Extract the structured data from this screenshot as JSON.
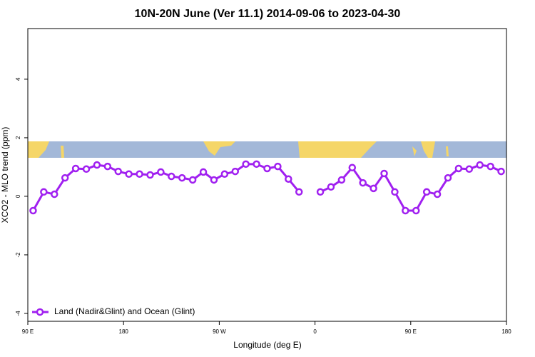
{
  "chart_data": {
    "type": "line",
    "title": "10N-20N June (Ver 11.1)   2014-09-06 to 2023-04-30",
    "x_label": "Longitude (deg E)",
    "y_label": "XCO2 - MLO trend (ppm)",
    "x": [
      95,
      105,
      115,
      125,
      135,
      145,
      155,
      165,
      175,
      185,
      195,
      205,
      215,
      225,
      235,
      245,
      255,
      265,
      275,
      285,
      295,
      305,
      315,
      325,
      335,
      345,
      355,
      365,
      375,
      385,
      395,
      405,
      415,
      425,
      435,
      445,
      455,
      465,
      475,
      485,
      495,
      505,
      515,
      525,
      535
    ],
    "series": [
      {
        "name": "Land (Nadir&Glint) and Ocean (Glint)",
        "color": "#a020f0",
        "values": [
          -0.49,
          0.15,
          0.07,
          0.63,
          0.95,
          0.93,
          1.07,
          1.02,
          0.85,
          0.76,
          0.76,
          0.73,
          0.83,
          0.68,
          0.63,
          0.56,
          0.83,
          0.56,
          0.76,
          0.85,
          1.1,
          1.1,
          0.95,
          1.02,
          0.59,
          0.15,
          null,
          0.15,
          0.32,
          0.56,
          0.98,
          0.46,
          0.27,
          0.78,
          0.15,
          -0.49,
          -0.49,
          0.15,
          0.07,
          0.63,
          0.95,
          0.93,
          1.07,
          1.02,
          0.85
        ]
      }
    ],
    "xlim": [
      90,
      540
    ],
    "xticks": [
      {
        "value": 90,
        "label": "90 E"
      },
      180,
      {
        "value": 270,
        "label": "90 W"
      },
      {
        "value": 360,
        "label": "0"
      },
      {
        "value": 450,
        "label": "90 E"
      },
      {
        "value": 540,
        "label": "180"
      }
    ],
    "ylim": [
      -4.27,
      5.73
    ],
    "yticks": [
      -4,
      -2,
      0,
      2,
      4
    ],
    "legend": "bottom-left"
  }
}
